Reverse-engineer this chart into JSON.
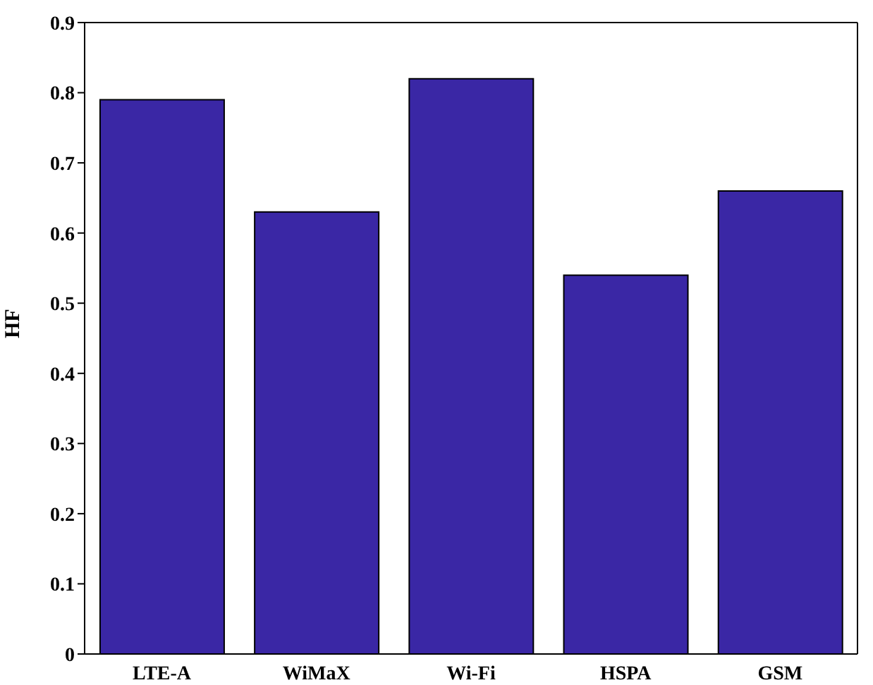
{
  "chart_data": {
    "type": "bar",
    "ylabel": "HF",
    "categories": [
      "LTE-A",
      "WiMaX",
      "Wi-Fi",
      "HSPA",
      "GSM"
    ],
    "values": [
      0.79,
      0.63,
      0.82,
      0.54,
      0.66
    ],
    "color": "#3a27a5",
    "ylim": [
      0,
      0.9
    ],
    "yticks": [
      0,
      0.1,
      0.2,
      0.3,
      0.4,
      0.5,
      0.6,
      0.7,
      0.8,
      0.9
    ]
  }
}
